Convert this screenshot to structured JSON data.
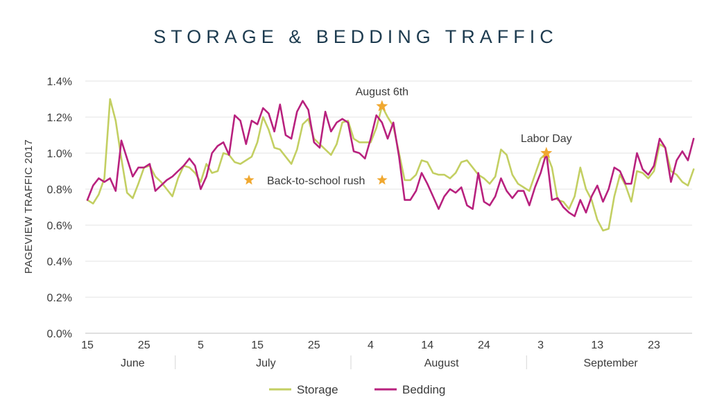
{
  "chart_data": {
    "type": "line",
    "title": "STORAGE & BEDDING TRAFFIC",
    "ylabel": "PAGEVIEW TRAFFIC 2017",
    "xlabel": "",
    "ylim": [
      0,
      1.4
    ],
    "y_ticks": [
      "0.0%",
      "0.2%",
      "0.4%",
      "0.6%",
      "0.8%",
      "1.0%",
      "1.2%",
      "1.4%"
    ],
    "x_ticks": [
      "15",
      "25",
      "5",
      "15",
      "25",
      "4",
      "14",
      "24",
      "3",
      "13",
      "23"
    ],
    "months": [
      "June",
      "July",
      "August",
      "September"
    ],
    "grid": true,
    "legend_position": "bottom",
    "colors": {
      "storage": "#c3cf62",
      "bedding": "#b8217e",
      "star": "#f0a830",
      "grid": "#e3e3e3",
      "title": "#1d3b4f"
    },
    "x_start": "2017-06-15",
    "series": [
      {
        "name": "Storage",
        "values": [
          0.74,
          0.72,
          0.77,
          0.86,
          1.3,
          1.18,
          0.97,
          0.78,
          0.75,
          0.83,
          0.92,
          0.93,
          0.87,
          0.84,
          0.8,
          0.76,
          0.86,
          0.93,
          0.92,
          0.89,
          0.84,
          0.94,
          0.89,
          0.9,
          1.0,
          0.99,
          0.95,
          0.94,
          0.96,
          0.98,
          1.06,
          1.2,
          1.13,
          1.03,
          1.02,
          0.98,
          0.94,
          1.02,
          1.16,
          1.19,
          1.08,
          1.05,
          1.02,
          0.99,
          1.05,
          1.17,
          1.18,
          1.08,
          1.06,
          1.06,
          1.06,
          1.14,
          1.26,
          1.2,
          1.15,
          1.0,
          0.85,
          0.85,
          0.88,
          0.96,
          0.95,
          0.89,
          0.88,
          0.88,
          0.86,
          0.89,
          0.95,
          0.96,
          0.92,
          0.88,
          0.86,
          0.83,
          0.87,
          1.02,
          0.99,
          0.88,
          0.83,
          0.81,
          0.79,
          0.88,
          0.97,
          1.0,
          0.92,
          0.74,
          0.73,
          0.69,
          0.76,
          0.92,
          0.8,
          0.74,
          0.63,
          0.57,
          0.58,
          0.76,
          0.88,
          0.82,
          0.73,
          0.9,
          0.89,
          0.86,
          0.9,
          1.05,
          1.03,
          0.9,
          0.88,
          0.84,
          0.82,
          0.91
        ]
      },
      {
        "name": "Bedding",
        "values": [
          0.74,
          0.82,
          0.86,
          0.84,
          0.86,
          0.79,
          1.07,
          0.97,
          0.87,
          0.92,
          0.92,
          0.94,
          0.79,
          0.82,
          0.85,
          0.87,
          0.9,
          0.93,
          0.97,
          0.93,
          0.8,
          0.87,
          1.0,
          1.04,
          1.06,
          0.99,
          1.21,
          1.18,
          1.05,
          1.18,
          1.16,
          1.25,
          1.22,
          1.12,
          1.27,
          1.1,
          1.08,
          1.23,
          1.29,
          1.24,
          1.06,
          1.03,
          1.23,
          1.12,
          1.17,
          1.19,
          1.17,
          1.01,
          1.0,
          0.97,
          1.08,
          1.21,
          1.17,
          1.08,
          1.17,
          0.98,
          0.74,
          0.74,
          0.79,
          0.89,
          0.83,
          0.76,
          0.69,
          0.76,
          0.8,
          0.78,
          0.81,
          0.71,
          0.69,
          0.89,
          0.73,
          0.71,
          0.76,
          0.86,
          0.79,
          0.75,
          0.79,
          0.79,
          0.71,
          0.81,
          0.89,
          1.0,
          0.74,
          0.75,
          0.7,
          0.67,
          0.65,
          0.74,
          0.67,
          0.76,
          0.82,
          0.73,
          0.8,
          0.92,
          0.9,
          0.83,
          0.83,
          1.0,
          0.91,
          0.88,
          0.93,
          1.08,
          1.03,
          0.84,
          0.96,
          1.01,
          0.96,
          1.08
        ]
      }
    ],
    "annotations": [
      {
        "label": "August 6th",
        "date": "2017-08-06",
        "y": 1.26,
        "type": "star"
      },
      {
        "label": "Labor Day",
        "date": "2017-09-04",
        "y": 1.0,
        "type": "star"
      },
      {
        "label": "Back-to-school rush",
        "type": "legend-key"
      }
    ]
  }
}
